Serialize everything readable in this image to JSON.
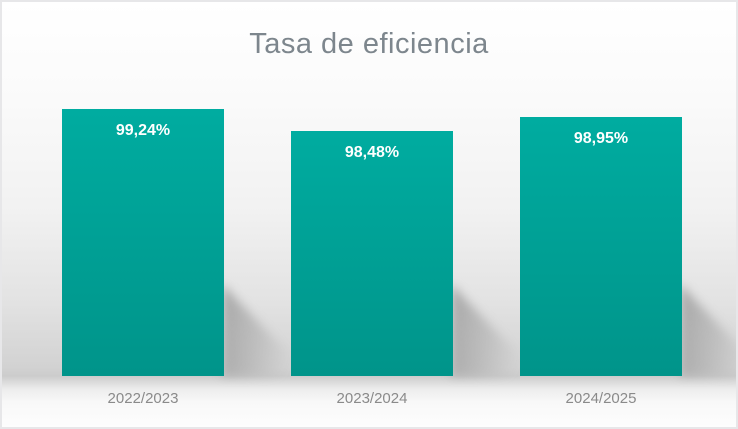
{
  "window": {
    "border_color": "#e7e7e9",
    "background_color": "#ffffff"
  },
  "chart_data": {
    "type": "bar",
    "title": "Tasa de eficiencia",
    "categories": [
      "2022/2023",
      "2023/2024",
      "2024/2025"
    ],
    "values": [
      99.24,
      98.48,
      98.95
    ],
    "data_labels": [
      "99,24%",
      "98,48%",
      "98,95%"
    ],
    "xlabel": "",
    "ylabel": "",
    "ylim": [
      90,
      100
    ],
    "grid": false,
    "legend": false,
    "axis_lines": false,
    "colors": {
      "bar_gradient_top": "#00aca0",
      "bar_gradient_bottom": "#00948a",
      "data_label": "#ffffff",
      "title": "#7d868d",
      "category_label": "#8a8a8a",
      "floor_shadow": "#6c6c6c"
    }
  }
}
